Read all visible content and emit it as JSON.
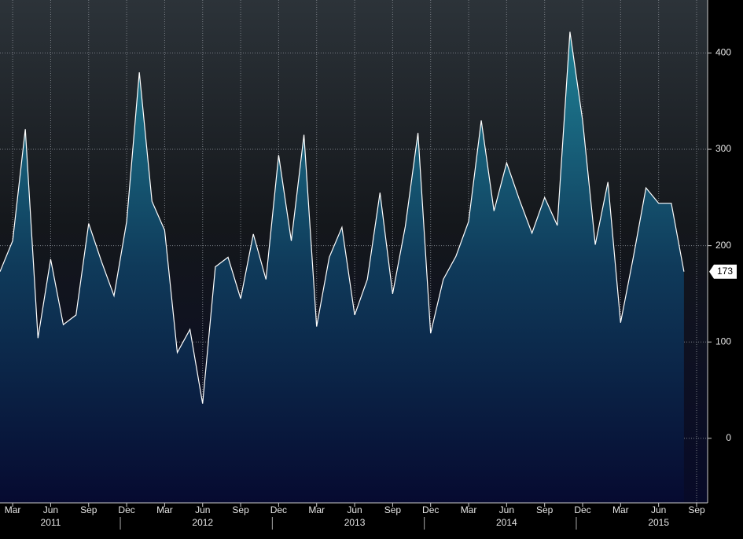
{
  "chart_data": {
    "type": "area",
    "x": [
      "2011-02",
      "2011-03",
      "2011-04",
      "2011-05",
      "2011-06",
      "2011-07",
      "2011-08",
      "2011-09",
      "2011-10",
      "2011-11",
      "2011-12",
      "2012-01",
      "2012-02",
      "2012-03",
      "2012-04",
      "2012-05",
      "2012-06",
      "2012-07",
      "2012-08",
      "2012-09",
      "2012-10",
      "2012-11",
      "2012-12",
      "2013-01",
      "2013-02",
      "2013-03",
      "2013-04",
      "2013-05",
      "2013-06",
      "2013-07",
      "2013-08",
      "2013-09",
      "2013-10",
      "2013-11",
      "2013-12",
      "2014-01",
      "2014-02",
      "2014-03",
      "2014-04",
      "2014-05",
      "2014-06",
      "2014-07",
      "2014-08",
      "2014-09",
      "2014-10",
      "2014-11",
      "2014-12",
      "2015-01",
      "2015-02",
      "2015-03",
      "2015-04",
      "2015-05",
      "2015-06",
      "2015-07",
      "2015-08"
    ],
    "values": [
      173,
      205,
      321,
      104,
      186,
      118,
      128,
      223,
      184,
      148,
      225,
      380,
      246,
      216,
      89,
      113,
      36,
      178,
      188,
      145,
      212,
      165,
      294,
      205,
      315,
      116,
      188,
      219,
      128,
      165,
      255,
      150,
      220,
      317,
      109,
      165,
      189,
      225,
      330,
      236,
      286,
      248,
      213,
      250,
      221,
      422,
      330,
      201,
      266,
      120,
      188,
      260,
      244,
      244,
      173
    ],
    "color": "#ffffff",
    "xlim": [
      "2011-02",
      "2015-09"
    ],
    "xticks": [
      {
        "value": "2011-03",
        "label": "Mar"
      },
      {
        "value": "2011-06",
        "label": "Jun"
      },
      {
        "value": "2011-09",
        "label": "Sep"
      },
      {
        "value": "2011-12",
        "label": "Dec"
      },
      {
        "value": "2012-03",
        "label": "Mar"
      },
      {
        "value": "2012-06",
        "label": "Jun"
      },
      {
        "value": "2012-09",
        "label": "Sep"
      },
      {
        "value": "2012-12",
        "label": "Dec"
      },
      {
        "value": "2013-03",
        "label": "Mar"
      },
      {
        "value": "2013-06",
        "label": "Jun"
      },
      {
        "value": "2013-09",
        "label": "Sep"
      },
      {
        "value": "2013-12",
        "label": "Dec"
      },
      {
        "value": "2014-03",
        "label": "Mar"
      },
      {
        "value": "2014-06",
        "label": "Jun"
      },
      {
        "value": "2014-09",
        "label": "Sep"
      },
      {
        "value": "2014-12",
        "label": "Dec"
      },
      {
        "value": "2015-03",
        "label": "Mar"
      },
      {
        "value": "2015-06",
        "label": "Jun"
      },
      {
        "value": "2015-09",
        "label": "Sep"
      }
    ],
    "year_labels": [
      {
        "value": "2011-06",
        "label": "2011"
      },
      {
        "value": "2012-06",
        "label": "2012"
      },
      {
        "value": "2013-06",
        "label": "2013"
      },
      {
        "value": "2014-06",
        "label": "2014"
      },
      {
        "value": "2015-06",
        "label": "2015"
      }
    ],
    "ylim": [
      -67,
      455
    ],
    "yticks": [
      0,
      100,
      200,
      300,
      400
    ],
    "grid": true
  }
}
